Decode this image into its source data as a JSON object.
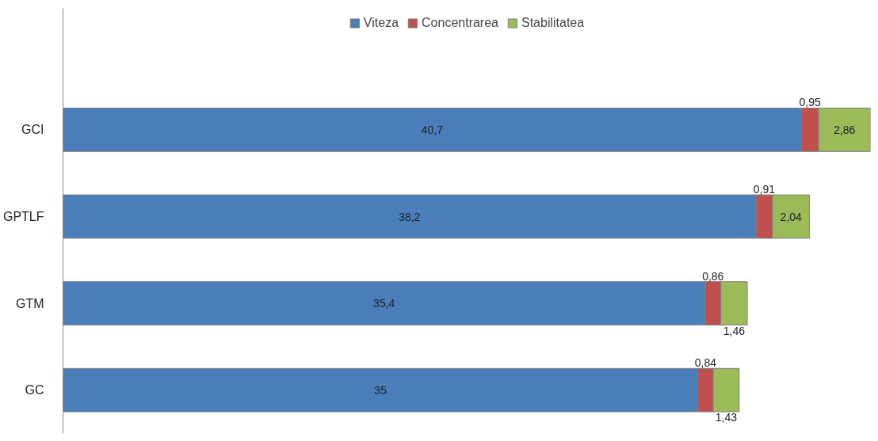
{
  "chart_data": {
    "type": "bar",
    "orientation": "horizontal",
    "stacked": true,
    "categories": [
      "GCI",
      "GPTLF",
      "GTM",
      "GC"
    ],
    "series": [
      {
        "name": "Viteza",
        "color": "#4a7ebb",
        "values": [
          40.7,
          38.2,
          35.4,
          35
        ],
        "value_labels": [
          "40,7",
          "38,2",
          "35,4",
          "35"
        ]
      },
      {
        "name": "Concentrarea",
        "color": "#c0504d",
        "values": [
          0.95,
          0.91,
          0.86,
          0.84
        ],
        "value_labels": [
          "0,95",
          "0,91",
          "0,86",
          "0,84"
        ]
      },
      {
        "name": "Stabilitatea",
        "color": "#9bbb59",
        "values": [
          2.86,
          2.04,
          1.46,
          1.43
        ],
        "value_labels": [
          "2,86",
          "2,04",
          "1,46",
          "1,43"
        ]
      }
    ],
    "legend": "top",
    "grid": false,
    "tick_labels": "y"
  }
}
